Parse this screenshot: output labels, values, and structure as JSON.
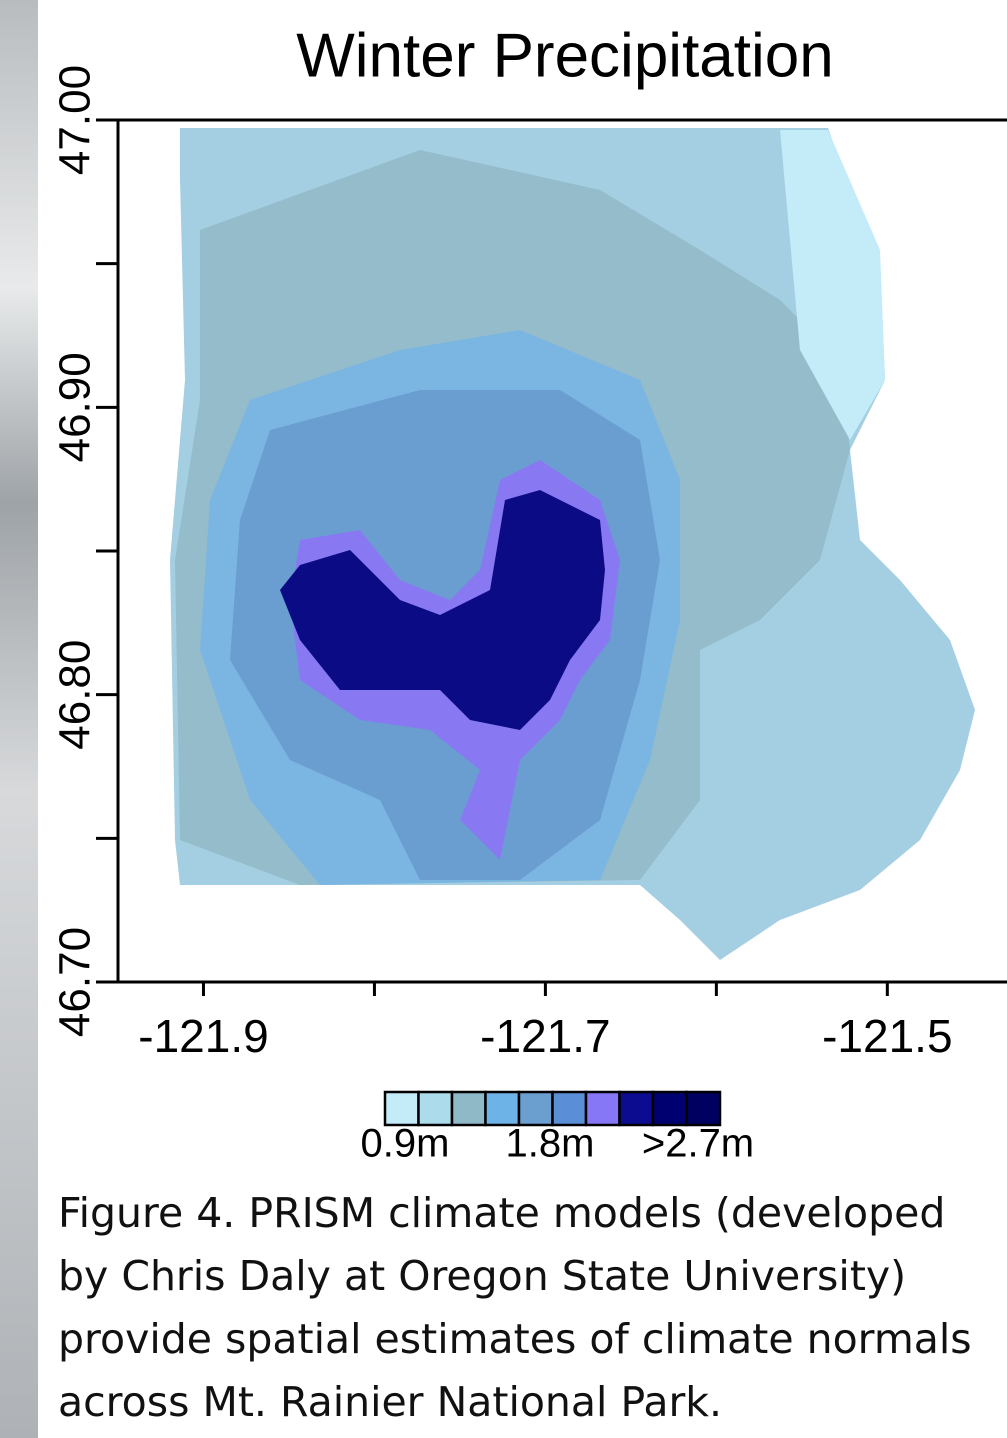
{
  "chart_data": {
    "type": "map",
    "title": "Winter Precipitation",
    "xlim": [
      -121.95,
      -121.43
    ],
    "ylim": [
      46.7,
      47.0
    ],
    "xticks": [
      -121.9,
      -121.7,
      -121.5
    ],
    "yticks": [
      {
        "value": 46.7,
        "label": "46.70"
      },
      {
        "value": 46.8,
        "label": "46.80"
      },
      {
        "value": 46.9,
        "label": "46.90"
      },
      {
        "value": 47.0,
        "label": "47.00"
      }
    ],
    "legend": {
      "colors": [
        "#c4ecf8",
        "#acdcec",
        "#90b9c8",
        "#6eb3e8",
        "#6a9fd0",
        "#5a8fd8",
        "#8577f5",
        "#0c0c90",
        "#000070",
        "#000060"
      ],
      "labels": [
        "0.9m",
        "1.8m",
        ">2.7m"
      ]
    }
  },
  "caption": {
    "lines": [
      "Figure 4. PRISM climate models (developed",
      "by Chris Daly at Oregon State University)",
      "provide spatial estimates of climate normals",
      "across Mt. Rainier National Park."
    ]
  }
}
